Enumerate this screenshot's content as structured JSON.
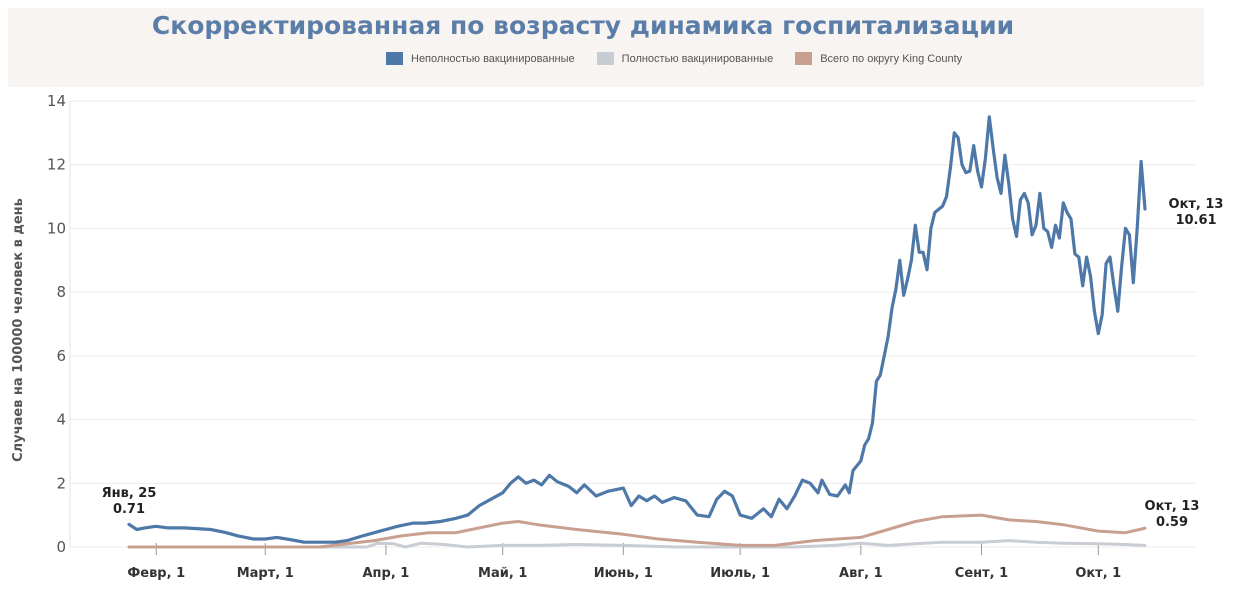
{
  "colors": {
    "unvaccinated": "#4e78a8",
    "vaccinated": "#c8cdd3",
    "county": "#c9a090",
    "header_bg": "#f8f4f2",
    "title": "#5b7ea8"
  },
  "chart_data": {
    "type": "line",
    "title": "Скорректированная по возрасту динамика госпитализации",
    "ylabel": "Случаев на 100000 человек в день",
    "xlabel": "",
    "ylim": [
      0,
      14
    ],
    "yticks": [
      0,
      2,
      4,
      6,
      8,
      10,
      12,
      14
    ],
    "xlim": [
      "2021-01-25",
      "2021-10-13"
    ],
    "xticks": [
      {
        "date": "2021-02-01",
        "label": "Февр, 1"
      },
      {
        "date": "2021-03-01",
        "label": "Март, 1"
      },
      {
        "date": "2021-04-01",
        "label": "Апр, 1"
      },
      {
        "date": "2021-05-01",
        "label": "Май, 1"
      },
      {
        "date": "2021-06-01",
        "label": "Июнь, 1"
      },
      {
        "date": "2021-07-01",
        "label": "Июль, 1"
      },
      {
        "date": "2021-08-01",
        "label": "Авг, 1"
      },
      {
        "date": "2021-09-01",
        "label": "Сент, 1"
      },
      {
        "date": "2021-10-01",
        "label": "Окт, 1"
      }
    ],
    "grid": true,
    "legend_position": "top",
    "series": [
      {
        "name": "Неполностью вакцинированные",
        "color": "#4e78a8",
        "points": [
          [
            "2021-01-25",
            0.71
          ],
          [
            "2021-01-27",
            0.55
          ],
          [
            "2021-01-29",
            0.6
          ],
          [
            "2021-02-01",
            0.65
          ],
          [
            "2021-02-04",
            0.6
          ],
          [
            "2021-02-08",
            0.6
          ],
          [
            "2021-02-11",
            0.58
          ],
          [
            "2021-02-15",
            0.55
          ],
          [
            "2021-02-19",
            0.45
          ],
          [
            "2021-02-22",
            0.35
          ],
          [
            "2021-02-26",
            0.25
          ],
          [
            "2021-03-01",
            0.25
          ],
          [
            "2021-03-04",
            0.3
          ],
          [
            "2021-03-08",
            0.22
          ],
          [
            "2021-03-11",
            0.15
          ],
          [
            "2021-03-15",
            0.15
          ],
          [
            "2021-03-19",
            0.15
          ],
          [
            "2021-03-22",
            0.2
          ],
          [
            "2021-03-26",
            0.35
          ],
          [
            "2021-03-29",
            0.45
          ],
          [
            "2021-04-01",
            0.55
          ],
          [
            "2021-04-04",
            0.65
          ],
          [
            "2021-04-08",
            0.75
          ],
          [
            "2021-04-11",
            0.75
          ],
          [
            "2021-04-15",
            0.8
          ],
          [
            "2021-04-19",
            0.9
          ],
          [
            "2021-04-22",
            1.0
          ],
          [
            "2021-04-25",
            1.3
          ],
          [
            "2021-04-28",
            1.5
          ],
          [
            "2021-05-01",
            1.7
          ],
          [
            "2021-05-03",
            2.0
          ],
          [
            "2021-05-05",
            2.2
          ],
          [
            "2021-05-07",
            2.0
          ],
          [
            "2021-05-09",
            2.1
          ],
          [
            "2021-05-11",
            1.95
          ],
          [
            "2021-05-13",
            2.25
          ],
          [
            "2021-05-15",
            2.05
          ],
          [
            "2021-05-18",
            1.9
          ],
          [
            "2021-05-20",
            1.7
          ],
          [
            "2021-05-22",
            1.95
          ],
          [
            "2021-05-25",
            1.6
          ],
          [
            "2021-05-28",
            1.75
          ],
          [
            "2021-06-01",
            1.85
          ],
          [
            "2021-06-03",
            1.3
          ],
          [
            "2021-06-05",
            1.6
          ],
          [
            "2021-06-07",
            1.45
          ],
          [
            "2021-06-09",
            1.6
          ],
          [
            "2021-06-11",
            1.4
          ],
          [
            "2021-06-14",
            1.55
          ],
          [
            "2021-06-17",
            1.45
          ],
          [
            "2021-06-20",
            1.0
          ],
          [
            "2021-06-23",
            0.95
          ],
          [
            "2021-06-25",
            1.5
          ],
          [
            "2021-06-27",
            1.75
          ],
          [
            "2021-06-29",
            1.6
          ],
          [
            "2021-07-01",
            1.0
          ],
          [
            "2021-07-04",
            0.9
          ],
          [
            "2021-07-07",
            1.2
          ],
          [
            "2021-07-09",
            0.95
          ],
          [
            "2021-07-11",
            1.5
          ],
          [
            "2021-07-13",
            1.2
          ],
          [
            "2021-07-15",
            1.6
          ],
          [
            "2021-07-17",
            2.1
          ],
          [
            "2021-07-19",
            2.0
          ],
          [
            "2021-07-21",
            1.7
          ],
          [
            "2021-07-22",
            2.1
          ],
          [
            "2021-07-24",
            1.65
          ],
          [
            "2021-07-26",
            1.6
          ],
          [
            "2021-07-28",
            1.95
          ],
          [
            "2021-07-29",
            1.7
          ],
          [
            "2021-07-30",
            2.4
          ],
          [
            "2021-08-01",
            2.7
          ],
          [
            "2021-08-02",
            3.2
          ],
          [
            "2021-08-03",
            3.4
          ],
          [
            "2021-08-04",
            3.9
          ],
          [
            "2021-08-05",
            5.2
          ],
          [
            "2021-08-06",
            5.4
          ],
          [
            "2021-08-07",
            6.0
          ],
          [
            "2021-08-08",
            6.6
          ],
          [
            "2021-08-09",
            7.5
          ],
          [
            "2021-08-10",
            8.1
          ],
          [
            "2021-08-11",
            9.0
          ],
          [
            "2021-08-12",
            7.9
          ],
          [
            "2021-08-13",
            8.4
          ],
          [
            "2021-08-14",
            9.0
          ],
          [
            "2021-08-15",
            10.1
          ],
          [
            "2021-08-16",
            9.25
          ],
          [
            "2021-08-17",
            9.25
          ],
          [
            "2021-08-18",
            8.7
          ],
          [
            "2021-08-19",
            10.0
          ],
          [
            "2021-08-20",
            10.5
          ],
          [
            "2021-08-22",
            10.7
          ],
          [
            "2021-08-23",
            11.0
          ],
          [
            "2021-08-24",
            11.9
          ],
          [
            "2021-08-25",
            13.0
          ],
          [
            "2021-08-26",
            12.85
          ],
          [
            "2021-08-27",
            12.0
          ],
          [
            "2021-08-28",
            11.75
          ],
          [
            "2021-08-29",
            11.8
          ],
          [
            "2021-08-30",
            12.6
          ],
          [
            "2021-08-31",
            11.8
          ],
          [
            "2021-09-01",
            11.3
          ],
          [
            "2021-09-02",
            12.2
          ],
          [
            "2021-09-03",
            13.5
          ],
          [
            "2021-09-04",
            12.5
          ],
          [
            "2021-09-05",
            11.6
          ],
          [
            "2021-09-06",
            11.1
          ],
          [
            "2021-09-07",
            12.3
          ],
          [
            "2021-09-08",
            11.4
          ],
          [
            "2021-09-09",
            10.3
          ],
          [
            "2021-09-10",
            9.75
          ],
          [
            "2021-09-11",
            10.9
          ],
          [
            "2021-09-12",
            11.1
          ],
          [
            "2021-09-13",
            10.8
          ],
          [
            "2021-09-14",
            9.8
          ],
          [
            "2021-09-15",
            10.1
          ],
          [
            "2021-09-16",
            11.1
          ],
          [
            "2021-09-17",
            10.0
          ],
          [
            "2021-09-18",
            9.9
          ],
          [
            "2021-09-19",
            9.4
          ],
          [
            "2021-09-20",
            10.1
          ],
          [
            "2021-09-21",
            9.7
          ],
          [
            "2021-09-22",
            10.8
          ],
          [
            "2021-09-23",
            10.5
          ],
          [
            "2021-09-24",
            10.3
          ],
          [
            "2021-09-25",
            9.2
          ],
          [
            "2021-09-26",
            9.1
          ],
          [
            "2021-09-27",
            8.2
          ],
          [
            "2021-09-28",
            9.1
          ],
          [
            "2021-09-29",
            8.5
          ],
          [
            "2021-09-30",
            7.4
          ],
          [
            "2021-10-01",
            6.7
          ],
          [
            "2021-10-02",
            7.3
          ],
          [
            "2021-10-03",
            8.9
          ],
          [
            "2021-10-04",
            9.1
          ],
          [
            "2021-10-05",
            8.2
          ],
          [
            "2021-10-06",
            7.4
          ],
          [
            "2021-10-07",
            8.8
          ],
          [
            "2021-10-08",
            10.0
          ],
          [
            "2021-10-09",
            9.8
          ],
          [
            "2021-10-10",
            8.3
          ],
          [
            "2021-10-11",
            10.0
          ],
          [
            "2021-10-12",
            12.1
          ],
          [
            "2021-10-13",
            10.61
          ]
        ]
      },
      {
        "name": "Полностью вакцинированные",
        "color": "#c8cdd3",
        "points": [
          [
            "2021-01-25",
            0.0
          ],
          [
            "2021-02-15",
            0.0
          ],
          [
            "2021-03-15",
            0.0
          ],
          [
            "2021-03-27",
            0.0
          ],
          [
            "2021-03-30",
            0.12
          ],
          [
            "2021-04-03",
            0.1
          ],
          [
            "2021-04-06",
            0.0
          ],
          [
            "2021-04-10",
            0.12
          ],
          [
            "2021-04-16",
            0.08
          ],
          [
            "2021-04-22",
            0.0
          ],
          [
            "2021-05-01",
            0.05
          ],
          [
            "2021-05-10",
            0.05
          ],
          [
            "2021-05-20",
            0.08
          ],
          [
            "2021-06-01",
            0.05
          ],
          [
            "2021-06-15",
            0.0
          ],
          [
            "2021-07-01",
            0.0
          ],
          [
            "2021-07-15",
            0.0
          ],
          [
            "2021-07-25",
            0.05
          ],
          [
            "2021-08-01",
            0.12
          ],
          [
            "2021-08-08",
            0.05
          ],
          [
            "2021-08-15",
            0.1
          ],
          [
            "2021-08-22",
            0.15
          ],
          [
            "2021-09-01",
            0.15
          ],
          [
            "2021-09-08",
            0.2
          ],
          [
            "2021-09-15",
            0.15
          ],
          [
            "2021-09-22",
            0.12
          ],
          [
            "2021-10-01",
            0.1
          ],
          [
            "2021-10-08",
            0.08
          ],
          [
            "2021-10-13",
            0.05
          ]
        ]
      },
      {
        "name": "Всего по округу King County",
        "color": "#c9a090",
        "points": [
          [
            "2021-01-25",
            0.0
          ],
          [
            "2021-02-15",
            0.0
          ],
          [
            "2021-03-15",
            0.0
          ],
          [
            "2021-03-22",
            0.1
          ],
          [
            "2021-03-29",
            0.2
          ],
          [
            "2021-04-05",
            0.35
          ],
          [
            "2021-04-12",
            0.45
          ],
          [
            "2021-04-19",
            0.45
          ],
          [
            "2021-04-25",
            0.6
          ],
          [
            "2021-05-01",
            0.75
          ],
          [
            "2021-05-05",
            0.8
          ],
          [
            "2021-05-10",
            0.7
          ],
          [
            "2021-05-20",
            0.55
          ],
          [
            "2021-06-01",
            0.4
          ],
          [
            "2021-06-10",
            0.25
          ],
          [
            "2021-06-20",
            0.15
          ],
          [
            "2021-07-01",
            0.05
          ],
          [
            "2021-07-10",
            0.05
          ],
          [
            "2021-07-20",
            0.2
          ],
          [
            "2021-08-01",
            0.3
          ],
          [
            "2021-08-08",
            0.55
          ],
          [
            "2021-08-15",
            0.8
          ],
          [
            "2021-08-22",
            0.95
          ],
          [
            "2021-09-01",
            1.0
          ],
          [
            "2021-09-08",
            0.85
          ],
          [
            "2021-09-15",
            0.8
          ],
          [
            "2021-09-22",
            0.7
          ],
          [
            "2021-10-01",
            0.5
          ],
          [
            "2021-10-08",
            0.45
          ],
          [
            "2021-10-13",
            0.59
          ]
        ]
      }
    ],
    "annotations": [
      {
        "date_label": "Янв, 25",
        "value_label": "0.71"
      },
      {
        "date_label": "Окт, 13",
        "value_label": "10.61"
      },
      {
        "date_label": "Окт, 13",
        "value_label": "0.59"
      }
    ]
  }
}
